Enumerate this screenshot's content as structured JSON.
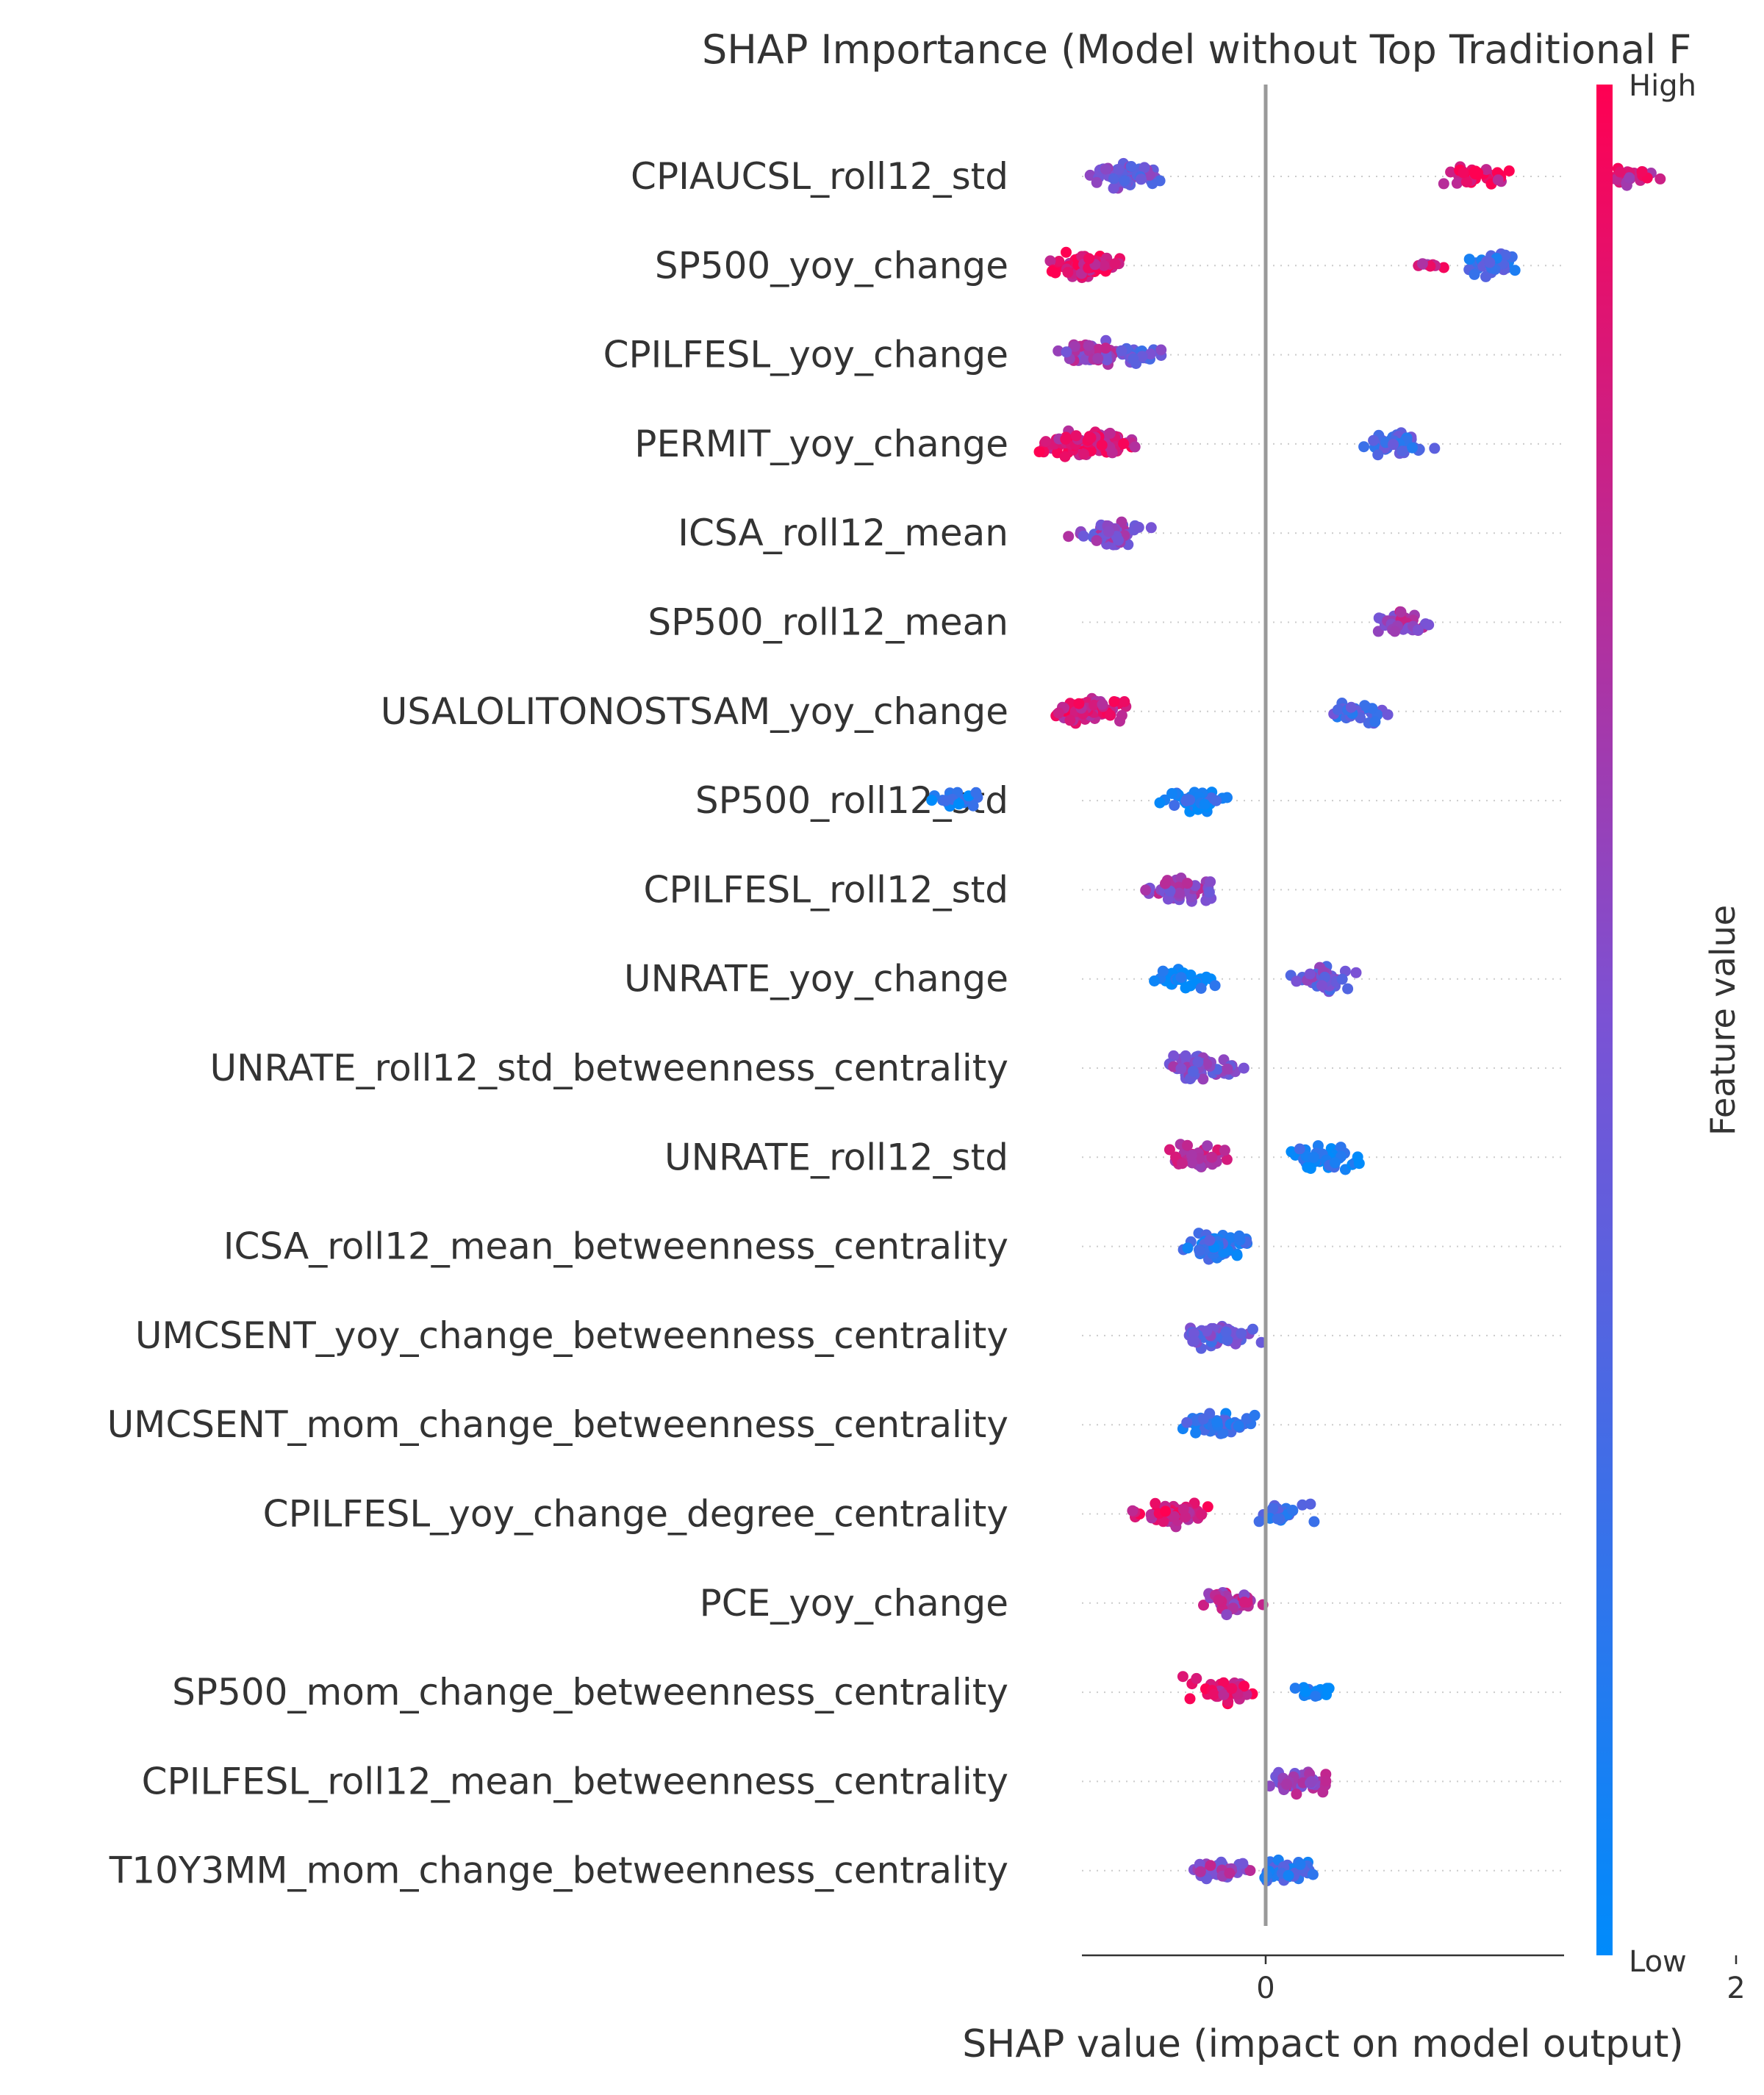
{
  "chart_data": {
    "type": "scatter",
    "title": "SHAP Importance (Model without Top Traditional F",
    "xlabel": "SHAP value (impact on model output)",
    "xlim": [
      -1.58,
      2.55
    ],
    "xticks": [
      0,
      2
    ],
    "xtick_labels": [
      "0",
      "2"
    ],
    "zero_line": true,
    "grid": false,
    "colorbar": {
      "title": "Feature value",
      "high_label": "High",
      "low_label": "Low",
      "low_color": "#008bfb",
      "high_color": "#ff0052"
    },
    "features": [
      {
        "name": "CPIAUCSL_roll12_std",
        "clusters": [
          [
            -0.58,
            60,
            0.45
          ],
          [
            0.9,
            35,
            0.9
          ],
          [
            1.55,
            30,
            0.8
          ]
        ]
      },
      {
        "name": "SP500_yoy_change",
        "clusters": [
          [
            -0.75,
            70,
            0.9
          ],
          [
            0.95,
            35,
            0.25
          ],
          [
            0.7,
            8,
            0.8
          ]
        ]
      },
      {
        "name": "CPILFESL_yoy_change",
        "clusters": [
          [
            -0.75,
            45,
            0.6
          ],
          [
            -0.55,
            30,
            0.4
          ]
        ]
      },
      {
        "name": "PERMIT_yoy_change",
        "clusters": [
          [
            -0.75,
            110,
            0.85
          ],
          [
            0.55,
            40,
            0.3
          ]
        ]
      },
      {
        "name": "ICSA_roll12_mean",
        "clusters": [
          [
            -0.65,
            55,
            0.55
          ]
        ]
      },
      {
        "name": "SP500_roll12_mean",
        "clusters": [
          [
            0.6,
            35,
            0.65
          ]
        ]
      },
      {
        "name": "USALOLITONOSTSAM_yoy_change",
        "clusters": [
          [
            -0.75,
            70,
            0.85
          ],
          [
            0.4,
            35,
            0.3
          ]
        ]
      },
      {
        "name": "SP500_roll12_std",
        "clusters": [
          [
            -1.3,
            25,
            0.1
          ],
          [
            -0.3,
            40,
            0.15
          ]
        ]
      },
      {
        "name": "CPILFESL_roll12_std",
        "clusters": [
          [
            -0.35,
            55,
            0.6
          ]
        ]
      },
      {
        "name": "UNRATE_yoy_change",
        "clusters": [
          [
            -0.35,
            35,
            0.05
          ],
          [
            0.25,
            40,
            0.45
          ]
        ]
      },
      {
        "name": "UNRATE_roll12_std_betweenness_centrality",
        "clusters": [
          [
            -0.27,
            60,
            0.5
          ]
        ]
      },
      {
        "name": "UNRATE_roll12_std",
        "clusters": [
          [
            -0.3,
            40,
            0.7
          ],
          [
            0.25,
            50,
            0.1
          ]
        ]
      },
      {
        "name": "ICSA_roll12_mean_betweenness_centrality",
        "clusters": [
          [
            -0.2,
            55,
            0.2
          ]
        ]
      },
      {
        "name": "UMCSENT_yoy_change_betweenness_centrality",
        "clusters": [
          [
            -0.2,
            60,
            0.4
          ]
        ]
      },
      {
        "name": "UMCSENT_mom_change_betweenness_centrality",
        "clusters": [
          [
            -0.22,
            60,
            0.2
          ]
        ]
      },
      {
        "name": "CPILFESL_yoy_change_degree_centrality",
        "clusters": [
          [
            -0.4,
            55,
            0.85
          ],
          [
            0.08,
            30,
            0.3
          ]
        ]
      },
      {
        "name": "PCE_yoy_change",
        "clusters": [
          [
            -0.15,
            50,
            0.7
          ]
        ]
      },
      {
        "name": "SP500_mom_change_betweenness_centrality",
        "clusters": [
          [
            -0.18,
            45,
            0.85
          ],
          [
            0.2,
            20,
            0.05
          ]
        ]
      },
      {
        "name": "CPILFESL_roll12_mean_betweenness_centrality",
        "clusters": [
          [
            0.16,
            45,
            0.6
          ]
        ]
      },
      {
        "name": "T10Y3MM_mom_change_betweenness_centrality",
        "clusters": [
          [
            -0.2,
            35,
            0.6
          ],
          [
            0.08,
            45,
            0.2
          ]
        ]
      }
    ]
  }
}
